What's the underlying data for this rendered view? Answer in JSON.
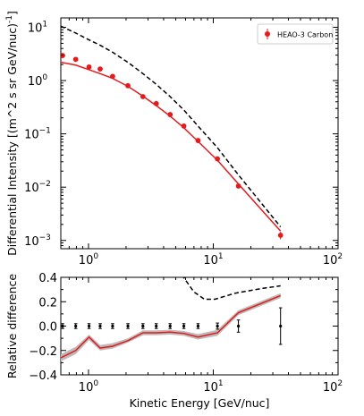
{
  "chart_data": [
    {
      "type": "line",
      "xscale": "log",
      "yscale": "log",
      "xlim": [
        0.6,
        100
      ],
      "ylim": [
        0.0007,
        15
      ],
      "ylabel": "Differential Intensity [(m^2 s sr GeV/nuc)$^{-1}$]",
      "xticks": [
        {
          "value": 1,
          "label": "10",
          "exp": "0"
        },
        {
          "value": 10,
          "label": "10",
          "exp": "1"
        },
        {
          "value": 100,
          "label": "10",
          "exp": "2"
        }
      ],
      "yticks": [
        {
          "value": 0.001,
          "label": "10",
          "exp": "−3"
        },
        {
          "value": 0.01,
          "label": "10",
          "exp": "−2"
        },
        {
          "value": 0.1,
          "label": "10",
          "exp": "−1"
        },
        {
          "value": 1,
          "label": "10",
          "exp": "0"
        },
        {
          "value": 10,
          "label": "10",
          "exp": "1"
        }
      ],
      "legend": {
        "location": "top-right",
        "entries": [
          "HEAO-3 Carbon"
        ]
      },
      "series": [
        {
          "name": "HEAO-3 Carbon",
          "style": "points-with-errorbars",
          "color": "#e41a1c",
          "x": [
            0.62,
            0.79,
            1.01,
            1.24,
            1.56,
            2.07,
            2.73,
            3.49,
            4.51,
            5.81,
            7.55,
            10.8,
            15.9,
            34.6
          ],
          "y": [
            2.95,
            2.5,
            1.8,
            1.65,
            1.2,
            0.8,
            0.5,
            0.37,
            0.23,
            0.14,
            0.075,
            0.034,
            0.0105,
            0.00125
          ],
          "yerr": [
            0.12,
            0.1,
            0.07,
            0.06,
            0.05,
            0.03,
            0.02,
            0.015,
            0.009,
            0.006,
            0.003,
            0.0015,
            0.001,
            0.0002
          ]
        },
        {
          "style": "solid-line",
          "color": "#e41a1c",
          "x": [
            0.6,
            0.79,
            1.01,
            1.24,
            1.56,
            2.07,
            2.73,
            3.49,
            4.51,
            5.81,
            7.55,
            10.8,
            15.9,
            34.6
          ],
          "y": [
            2.2,
            1.95,
            1.6,
            1.35,
            1.1,
            0.78,
            0.51,
            0.34,
            0.215,
            0.13,
            0.072,
            0.032,
            0.0115,
            0.0015
          ]
        },
        {
          "style": "dashed-line",
          "color": "#000000",
          "x": [
            0.6,
            0.79,
            1.01,
            1.24,
            1.56,
            2.07,
            2.73,
            3.49,
            4.51,
            5.81,
            7.55,
            10.8,
            15.9,
            34.6
          ],
          "y": [
            10.5,
            7.8,
            5.8,
            4.6,
            3.4,
            2.2,
            1.35,
            0.85,
            0.5,
            0.28,
            0.14,
            0.055,
            0.017,
            0.0018
          ]
        }
      ]
    },
    {
      "type": "line",
      "xscale": "log",
      "xlim": [
        0.6,
        100
      ],
      "ylim": [
        -0.4,
        0.4
      ],
      "xlabel": "Kinetic Energy [GeV/nuc]",
      "ylabel": "Relative difference",
      "xticks": [
        {
          "value": 1,
          "label": "10",
          "exp": "0"
        },
        {
          "value": 10,
          "label": "10",
          "exp": "1"
        },
        {
          "value": 100,
          "label": "10",
          "exp": "2"
        }
      ],
      "yticks": [
        {
          "value": -0.4,
          "label": "−0.4"
        },
        {
          "value": -0.2,
          "label": "−0.2"
        },
        {
          "value": 0.0,
          "label": "0.0"
        },
        {
          "value": 0.2,
          "label": "0.2"
        },
        {
          "value": 0.4,
          "label": "0.4"
        }
      ],
      "series": [
        {
          "style": "band",
          "color": "#bbbbbb",
          "x": [
            0.6,
            0.79,
            1.01,
            1.24,
            1.56,
            2.07,
            2.73,
            3.49,
            4.51,
            5.81,
            7.55,
            10.8,
            15.9,
            34.6
          ],
          "y_low": [
            -0.29,
            -0.23,
            -0.115,
            -0.2,
            -0.185,
            -0.135,
            -0.075,
            -0.075,
            -0.07,
            -0.08,
            -0.11,
            -0.08,
            0.09,
            0.23
          ],
          "y_high": [
            -0.23,
            -0.17,
            -0.07,
            -0.155,
            -0.14,
            -0.1,
            -0.035,
            -0.035,
            -0.03,
            -0.04,
            -0.065,
            -0.03,
            0.13,
            0.27
          ]
        },
        {
          "style": "solid-line",
          "color": "#e41a1c",
          "x": [
            0.6,
            0.79,
            1.01,
            1.24,
            1.56,
            2.07,
            2.73,
            3.49,
            4.51,
            5.81,
            7.55,
            10.8,
            15.9,
            34.6
          ],
          "y": [
            -0.26,
            -0.2,
            -0.09,
            -0.18,
            -0.165,
            -0.12,
            -0.055,
            -0.055,
            -0.05,
            -0.06,
            -0.09,
            -0.055,
            0.11,
            0.25
          ]
        },
        {
          "style": "dashed-line",
          "color": "#000000",
          "x": [
            5.6,
            7.0,
            8.5,
            10.3,
            15.0,
            25.0,
            34.6
          ],
          "y": [
            0.42,
            0.28,
            0.22,
            0.22,
            0.27,
            0.31,
            0.33
          ]
        },
        {
          "style": "points-with-errorbars",
          "color": "#000000",
          "x": [
            0.62,
            0.79,
            1.01,
            1.24,
            1.56,
            2.07,
            2.73,
            3.49,
            4.51,
            5.81,
            7.55,
            10.8,
            15.9,
            34.6
          ],
          "y": [
            0,
            0,
            0,
            0,
            0,
            0,
            0,
            0,
            0,
            0,
            0,
            0,
            0,
            0
          ],
          "yerr": [
            0.02,
            0.02,
            0.02,
            0.02,
            0.02,
            0.02,
            0.02,
            0.02,
            0.02,
            0.02,
            0.02,
            0.025,
            0.05,
            0.15
          ]
        }
      ]
    }
  ]
}
